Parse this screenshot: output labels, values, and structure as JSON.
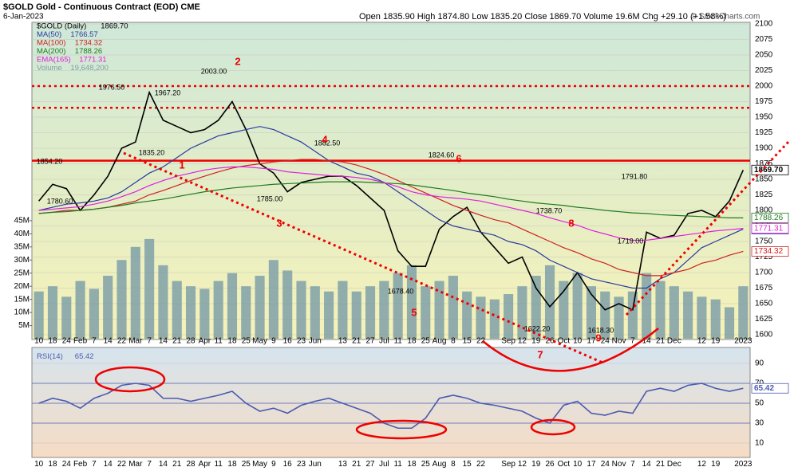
{
  "header": {
    "title": "$GOLD Gold - Continuous Contract (EOD) CME",
    "date": "6-Jan-2023",
    "quote": "Open 1835.90 High 1874.80 Low 1835.20 Close 1869.70 Volume 19.6M Chg +29.10 (+1.58%)",
    "credit": "© StockCharts.com"
  },
  "chart_data": [
    {
      "type": "line",
      "categories": [
        "10",
        "18",
        "24",
        "Feb",
        "7",
        "14",
        "22",
        "Mar",
        "7",
        "14",
        "21",
        "28",
        "Apr",
        "11",
        "18",
        "25",
        "May",
        "9",
        "16",
        "23",
        "Jun",
        null,
        "13",
        "21",
        "27",
        "Jul",
        "11",
        "18",
        "25",
        "Aug",
        "8",
        "15",
        "22",
        null,
        "Sep",
        "12",
        "19",
        "26",
        "Oct",
        "10",
        "17",
        "24",
        "Nov",
        "7",
        "14",
        "21",
        "Dec",
        null,
        "12",
        "19",
        null,
        "2023"
      ],
      "ylim": [
        1600,
        2100
      ],
      "yticks": [
        1600,
        1625,
        1650,
        1675,
        1700,
        1725,
        1750,
        1775,
        1800,
        1825,
        1850,
        1875,
        1900,
        1925,
        1950,
        1975,
        2000,
        2025,
        2050,
        2075,
        2100
      ],
      "y2lim": [
        0,
        120
      ],
      "y2ticks": [
        {
          "value": 5,
          "label": "5M"
        },
        {
          "value": 10,
          "label": "10M"
        },
        {
          "value": 15,
          "label": "15M"
        },
        {
          "value": 20,
          "label": "20M"
        },
        {
          "value": 25,
          "label": "25M"
        },
        {
          "value": 30,
          "label": "30M"
        },
        {
          "value": 35,
          "label": "35M"
        },
        {
          "value": 40,
          "label": "40M"
        },
        {
          "value": 45,
          "label": "45M"
        }
      ],
      "series": [
        {
          "name": "$GOLD (Daily)",
          "last_label": "1869.70",
          "color": "#000000",
          "values": [
            1815,
            1842,
            1835,
            1800,
            1825,
            1855,
            1900,
            1910,
            1990,
            1945,
            1935,
            1925,
            1930,
            1945,
            1975,
            1930,
            1875,
            1860,
            1830,
            1845,
            1850,
            1855,
            1855,
            1840,
            1820,
            1800,
            1735,
            1710,
            1710,
            1770,
            1790,
            1805,
            1765,
            1740,
            1715,
            1725,
            1675,
            1645,
            1670,
            1700,
            1665,
            1640,
            1650,
            1640,
            1765,
            1755,
            1760,
            1795,
            1800,
            1790,
            1815,
            1865
          ]
        },
        {
          "name": "MA(50)",
          "last_label": "1766.57",
          "color": "#2a3aa0",
          "values": [
            1800,
            1805,
            1810,
            1812,
            1815,
            1820,
            1830,
            1845,
            1860,
            1870,
            1885,
            1900,
            1910,
            1920,
            1925,
            1930,
            1935,
            1930,
            1920,
            1910,
            1895,
            1880,
            1870,
            1860,
            1855,
            1845,
            1830,
            1815,
            1800,
            1785,
            1775,
            1770,
            1765,
            1760,
            1750,
            1745,
            1735,
            1720,
            1710,
            1700,
            1690,
            1685,
            1680,
            1675,
            1675,
            1690,
            1700,
            1720,
            1740,
            1750,
            1760,
            1770
          ]
        },
        {
          "name": "MA(100)",
          "last_label": "1734.32",
          "color": "#d02020",
          "values": [
            1795,
            1797,
            1800,
            1800,
            1802,
            1805,
            1810,
            1815,
            1825,
            1832,
            1840,
            1848,
            1855,
            1862,
            1868,
            1872,
            1875,
            1878,
            1880,
            1882,
            1882,
            1880,
            1878,
            1873,
            1866,
            1858,
            1848,
            1838,
            1828,
            1818,
            1808,
            1800,
            1792,
            1785,
            1780,
            1770,
            1760,
            1750,
            1740,
            1732,
            1722,
            1715,
            1705,
            1700,
            1695,
            1695,
            1700,
            1705,
            1715,
            1720,
            1728,
            1734
          ]
        },
        {
          "name": "MA(200)",
          "last_label": "1788.26",
          "color": "#1f7a1f",
          "values": [
            1795,
            1797,
            1798,
            1800,
            1802,
            1805,
            1808,
            1812,
            1815,
            1818,
            1822,
            1826,
            1830,
            1833,
            1836,
            1838,
            1840,
            1842,
            1843,
            1844,
            1845,
            1846,
            1846,
            1846,
            1845,
            1844,
            1843,
            1841,
            1838,
            1835,
            1832,
            1828,
            1825,
            1822,
            1818,
            1815,
            1812,
            1810,
            1808,
            1805,
            1803,
            1800,
            1798,
            1796,
            1795,
            1793,
            1792,
            1791,
            1790,
            1789,
            1788,
            1788
          ]
        },
        {
          "name": "EMA(165)",
          "last_label": "1771.31",
          "color": "#e020e0",
          "values": [
            1800,
            1802,
            1804,
            1806,
            1810,
            1815,
            1822,
            1830,
            1840,
            1848,
            1855,
            1860,
            1865,
            1868,
            1870,
            1870,
            1868,
            1866,
            1862,
            1860,
            1858,
            1856,
            1855,
            1853,
            1850,
            1845,
            1838,
            1830,
            1825,
            1822,
            1820,
            1818,
            1815,
            1810,
            1805,
            1800,
            1795,
            1788,
            1782,
            1776,
            1768,
            1762,
            1756,
            1752,
            1752,
            1755,
            1758,
            1761,
            1764,
            1767,
            1769,
            1771
          ]
        },
        {
          "name": "Volume",
          "last_label": "19,648,200",
          "type": "bar",
          "axis": "y2",
          "color": "#7fa0a8",
          "values": [
            18,
            20,
            16,
            22,
            19,
            24,
            30,
            35,
            38,
            28,
            22,
            20,
            19,
            22,
            25,
            20,
            24,
            30,
            26,
            22,
            20,
            18,
            22,
            18,
            20,
            22,
            25,
            28,
            20,
            22,
            24,
            18,
            16,
            15,
            17,
            20,
            24,
            28,
            22,
            25,
            20,
            18,
            16,
            18,
            25,
            22,
            20,
            18,
            16,
            15,
            12,
            20
          ]
        }
      ],
      "hlines": [
        {
          "value": 2000,
          "style": "dotted"
        },
        {
          "value": 1965,
          "style": "dotted"
        },
        {
          "value": 1880,
          "style": "solid"
        }
      ],
      "annotations": [
        "1976.50",
        "2003.00",
        "1967.20",
        "1854.20",
        "1780.60",
        "1835.20",
        "1785.00",
        "1882.50",
        "1824.60",
        "1678.40",
        "1738.70",
        "1622.20",
        "1618.30",
        "1791.80",
        "1719.00"
      ],
      "wave_labels": [
        "1",
        "2",
        "3",
        "4",
        "5",
        "6",
        "7",
        "8",
        "9"
      ]
    },
    {
      "type": "line",
      "categories": [
        "10",
        "18",
        "24",
        "Feb",
        "7",
        "14",
        "22",
        "Mar",
        "7",
        "14",
        "21",
        "28",
        "Apr",
        "11",
        "18",
        "25",
        "May",
        "9",
        "16",
        "23",
        "Jun",
        null,
        "13",
        "21",
        "27",
        "Jul",
        "11",
        "18",
        "25",
        "Aug",
        "8",
        "15",
        "22",
        null,
        "Sep",
        "12",
        "19",
        "26",
        "Oct",
        "10",
        "17",
        "24",
        "Nov",
        "7",
        "14",
        "21",
        "Dec",
        null,
        "12",
        "19",
        null,
        "2023"
      ],
      "ylim": [
        0,
        100
      ],
      "yticks": [
        10,
        30,
        50,
        70,
        90
      ],
      "series": [
        {
          "name": "RSI(14)",
          "last_label": "65.42",
          "color": "#4a5ab0",
          "values": [
            50,
            55,
            52,
            45,
            55,
            60,
            68,
            70,
            68,
            55,
            55,
            52,
            55,
            58,
            62,
            50,
            42,
            45,
            40,
            48,
            52,
            55,
            50,
            45,
            40,
            30,
            25,
            25,
            35,
            55,
            58,
            55,
            50,
            48,
            45,
            42,
            35,
            30,
            48,
            52,
            40,
            38,
            42,
            40,
            62,
            65,
            62,
            68,
            70,
            65,
            62,
            65
          ]
        }
      ]
    }
  ]
}
